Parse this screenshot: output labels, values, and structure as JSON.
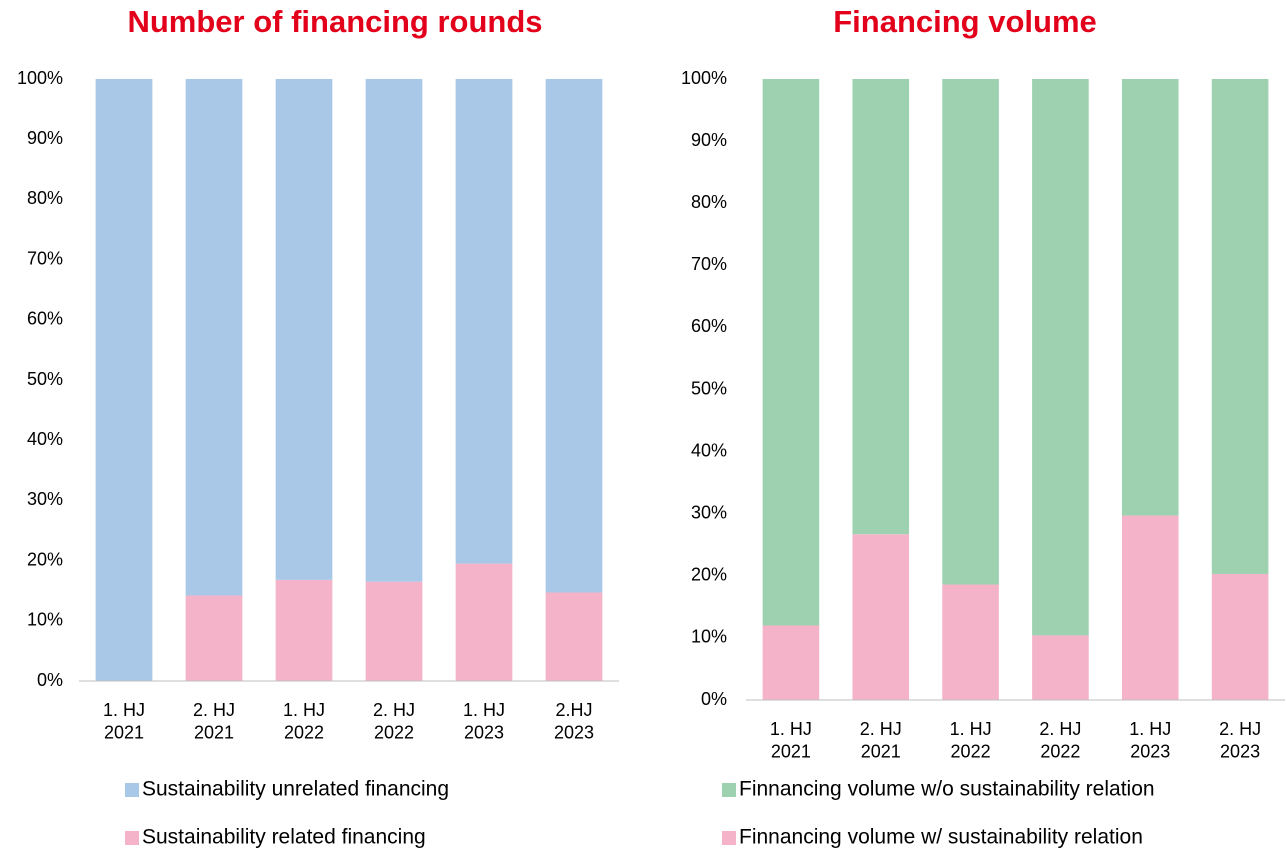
{
  "chart_data": [
    {
      "type": "stacked_bar",
      "title": "Number of financing rounds",
      "categories": [
        "1. HJ\n2021",
        "2. HJ\n2021",
        "1. HJ\n2022",
        "2. HJ\n2022",
        "1. HJ\n2023",
        "2.HJ\n2023"
      ],
      "series": [
        {
          "name": "Sustainability unrelated financing",
          "color": "#a9c8e8",
          "values": [
            100,
            85.8,
            83.2,
            83.5,
            80.5,
            85.3
          ]
        },
        {
          "name": "Sustainability related financing",
          "color": "#f5b3c9",
          "values": [
            0,
            14.2,
            16.8,
            16.5,
            19.5,
            14.7
          ]
        }
      ],
      "ylim": [
        0,
        100
      ],
      "yticks": [
        {
          "value": 0,
          "label": "0%"
        },
        {
          "value": 10,
          "label": "10%"
        },
        {
          "value": 20,
          "label": "20%"
        },
        {
          "value": 30,
          "label": "30%"
        },
        {
          "value": 40,
          "label": "40%"
        },
        {
          "value": 50,
          "label": "50%"
        },
        {
          "value": 60,
          "label": "60%"
        },
        {
          "value": 70,
          "label": "70%"
        },
        {
          "value": 80,
          "label": "80%"
        },
        {
          "value": 90,
          "label": "90%"
        },
        {
          "value": 100,
          "label": "100%"
        }
      ],
      "grid": false,
      "legend": "bottom"
    },
    {
      "type": "stacked_bar",
      "title": "Financing volume",
      "categories": [
        "1. HJ\n2021",
        "2. HJ\n2021",
        "1. HJ\n2022",
        "2. HJ\n2022",
        "1. HJ\n2023",
        "2. HJ\n2023"
      ],
      "series": [
        {
          "name": "Finnancing volume w/o sustainability relation",
          "color": "#9dd1b0",
          "values": [
            88,
            73.3,
            81.4,
            89.6,
            70.3,
            79.7
          ]
        },
        {
          "name": "Finnancing volume w/ sustainability relation",
          "color": "#f5b3c9",
          "values": [
            12,
            26.7,
            18.6,
            10.4,
            29.7,
            20.3
          ]
        }
      ],
      "ylim": [
        0,
        100
      ],
      "yticks": [
        {
          "value": 0,
          "label": "0%"
        },
        {
          "value": 10,
          "label": "10%"
        },
        {
          "value": 20,
          "label": "20%"
        },
        {
          "value": 30,
          "label": "30%"
        },
        {
          "value": 40,
          "label": "40%"
        },
        {
          "value": 50,
          "label": "50%"
        },
        {
          "value": 60,
          "label": "60%"
        },
        {
          "value": 70,
          "label": "70%"
        },
        {
          "value": 80,
          "label": "80%"
        },
        {
          "value": 90,
          "label": "90%"
        },
        {
          "value": 100,
          "label": "100%"
        }
      ],
      "grid": false,
      "legend": "bottom"
    }
  ]
}
